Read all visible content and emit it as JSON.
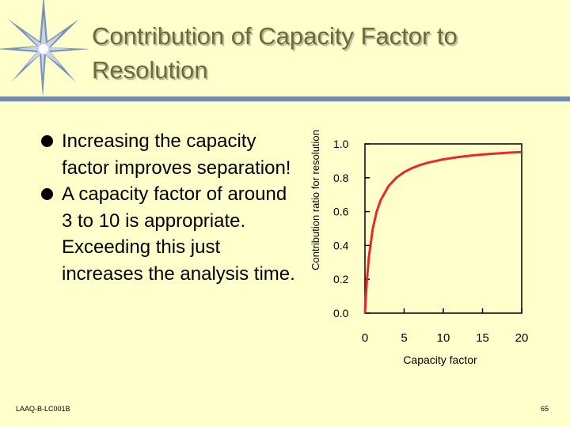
{
  "slide": {
    "title": "Contribution of Capacity Factor to Resolution",
    "bullets": [
      "Increasing the capacity factor improves separation!",
      "A capacity factor of around 3 to 10 is appropriate. Exceeding this just increases the analysis time."
    ],
    "footer_left": "LAAQ-B-LC001B",
    "page_number": "65"
  },
  "colors": {
    "background": "#FFFFCC",
    "title": "#6B6B3A",
    "rule": "#6F8FA8",
    "curve": "#E8282A"
  },
  "chart_data": {
    "type": "line",
    "title": "",
    "xlabel": "Capacity factor",
    "ylabel": "Contribution ratio for resolution",
    "xlim": [
      0,
      20
    ],
    "ylim": [
      0,
      1.0
    ],
    "x_ticks": [
      "0",
      "5",
      "10",
      "15",
      "20"
    ],
    "y_ticks": [
      "0.0",
      "0.2",
      "0.4",
      "0.6",
      "0.8",
      "1.0"
    ],
    "grid": false,
    "series": [
      {
        "name": "",
        "x": [
          0,
          0.25,
          0.5,
          1,
          1.5,
          2,
          3,
          4,
          5,
          6,
          7,
          8,
          10,
          12,
          14,
          16,
          18,
          20
        ],
        "y": [
          0,
          0.2,
          0.333,
          0.5,
          0.6,
          0.667,
          0.75,
          0.8,
          0.833,
          0.857,
          0.875,
          0.889,
          0.909,
          0.923,
          0.933,
          0.941,
          0.947,
          0.952
        ]
      }
    ]
  }
}
